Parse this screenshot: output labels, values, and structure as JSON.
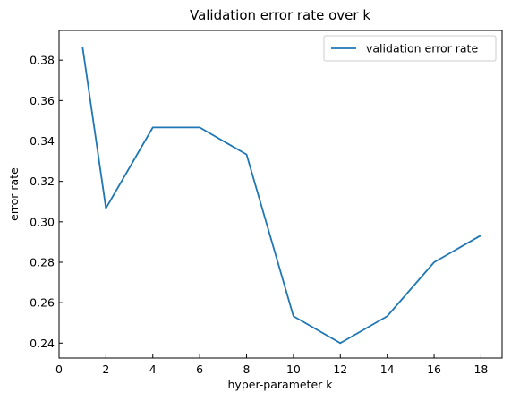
{
  "chart_data": {
    "type": "line",
    "title": "Validation error rate over k",
    "xlabel": "hyper-parameter k",
    "ylabel": "error rate",
    "xlim": [
      0,
      18.9
    ],
    "ylim": [
      0.2326,
      0.3947
    ],
    "x_ticks": [
      0,
      2,
      4,
      6,
      8,
      10,
      12,
      14,
      16,
      18
    ],
    "y_ticks": [
      0.24,
      0.26,
      0.28,
      0.3,
      0.32,
      0.34,
      0.36,
      0.38
    ],
    "x_tick_labels": [
      "0",
      "2",
      "4",
      "6",
      "8",
      "10",
      "12",
      "14",
      "16",
      "18"
    ],
    "y_tick_labels": [
      "0.24",
      "0.26",
      "0.28",
      "0.30",
      "0.32",
      "0.34",
      "0.36",
      "0.38"
    ],
    "grid": false,
    "legend_position": "top-right",
    "series": [
      {
        "name": "validation error rate",
        "color": "#1f77b4",
        "x": [
          1,
          2,
          4,
          6,
          8,
          10,
          12,
          14,
          16,
          18
        ],
        "values": [
          0.3867,
          0.3067,
          0.3467,
          0.3467,
          0.3333,
          0.2533,
          0.24,
          0.2533,
          0.28,
          0.2933
        ]
      }
    ]
  }
}
